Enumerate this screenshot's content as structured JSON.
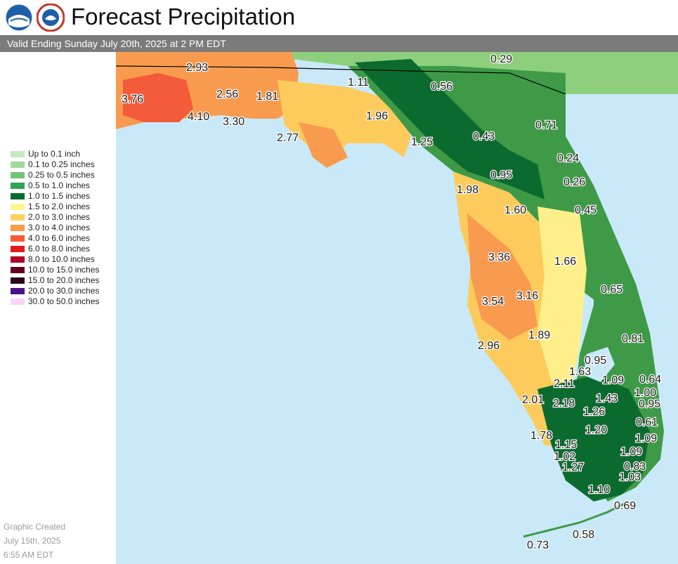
{
  "header": {
    "title": "Forecast Precipitation",
    "subtitle": "Valid Ending Sunday July 20th, 2025 at 2 PM EDT"
  },
  "logos": {
    "left": "noaa-logo",
    "right": "nws-logo"
  },
  "colors": {
    "water": "#c9e9f9",
    "subtitle_bar": "#7b7b7b",
    "land_light_green": "#8ecf7d",
    "land_green": "#3e9a47",
    "land_dark_green": "#0b6b2f",
    "land_yellow": "#ffef8a",
    "land_gold": "#fccb5b",
    "land_orange": "#f99b4f",
    "land_red_orange": "#f45b3a"
  },
  "legend": {
    "items": [
      {
        "label": "Up to 0.1 inch",
        "color": "#c7e9c0"
      },
      {
        "label": "0.1 to 0.25 inches",
        "color": "#a1d99b"
      },
      {
        "label": "0.25 to 0.5 inches",
        "color": "#74c476"
      },
      {
        "label": "0.5 to 1.0 inches",
        "color": "#31a354"
      },
      {
        "label": "1.0 to 1.5 inches",
        "color": "#006d2c"
      },
      {
        "label": "1.5 to 2.0 inches",
        "color": "#fff68f"
      },
      {
        "label": "2.0 to 3.0 inches",
        "color": "#fdd060"
      },
      {
        "label": "3.0 to 4.0 inches",
        "color": "#fd9a44"
      },
      {
        "label": "4.0 to 6.0 inches",
        "color": "#fc5a34"
      },
      {
        "label": "6.0 to 8.0 inches",
        "color": "#e31a1c"
      },
      {
        "label": "8.0 to 10.0 inches",
        "color": "#b10026"
      },
      {
        "label": "10.0 to 15.0 inches",
        "color": "#67001f"
      },
      {
        "label": "15.0 to 20.0 inches",
        "color": "#2d0020"
      },
      {
        "label": "20.0 to 30.0 inches",
        "color": "#4a1486"
      },
      {
        "label": "30.0 to 50.0 inches",
        "color": "#fcd3f4"
      }
    ]
  },
  "created": {
    "line1": "Graphic Created",
    "line2": "July 15th, 2025",
    "line3": "6:55 AM EDT"
  },
  "map_labels": [
    "2.93",
    "3.76",
    "2.56",
    "1.81",
    "4.10",
    "3.30",
    "2.77",
    "1.11",
    "0.56",
    "0.29",
    "1.96",
    "1.25",
    "0.43",
    "0.71",
    "0.24",
    "0.95",
    "0.26",
    "1.98",
    "1.60",
    "0.45",
    "3.36",
    "1.66",
    "3.54",
    "3.16",
    "0.65",
    "2.96",
    "1.89",
    "0.81",
    "0.95",
    "1.63",
    "1.09",
    "0.64",
    "2.11",
    "1.00",
    "2.01",
    "2.18",
    "1.43",
    "0.95",
    "1.26",
    "0.61",
    "1.20",
    "1.78",
    "1.09",
    "1.15",
    "1.02",
    "1.09",
    "1.27",
    "0.83",
    "1.03",
    "1.10",
    "0.69",
    "0.58",
    "0.73"
  ]
}
